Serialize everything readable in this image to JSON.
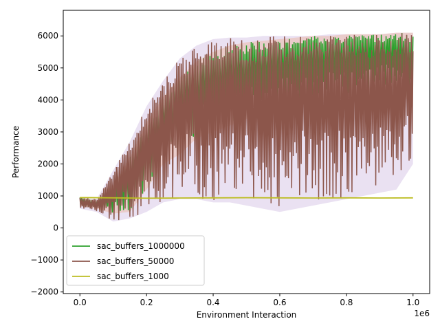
{
  "chart_data": {
    "type": "line",
    "xlabel": "Environment Interaction",
    "ylabel": "Performance",
    "x_offset_label": "1e6",
    "xlim": [
      -0.05,
      1.05
    ],
    "ylim": [
      -2050,
      6800
    ],
    "x_ticks": [
      0.0,
      0.2,
      0.4,
      0.6,
      0.8,
      1.0
    ],
    "x_tick_labels": [
      "0.0",
      "0.2",
      "0.4",
      "0.6",
      "0.8",
      "1.0"
    ],
    "y_ticks": [
      -2000,
      -1000,
      0,
      1000,
      2000,
      3000,
      4000,
      5000,
      6000
    ],
    "y_tick_labels": [
      "−2000",
      "−1000",
      "0",
      "1000",
      "2000",
      "3000",
      "4000",
      "5000",
      "6000"
    ],
    "grid": false,
    "legend_position": "lower-left",
    "series": [
      {
        "name": "sac_buffers_1000000",
        "color": "#2ca02c",
        "band_color": "#ff7f0e",
        "x": [
          0.0,
          0.05,
          0.1,
          0.15,
          0.2,
          0.25,
          0.3,
          0.35,
          0.4,
          0.45,
          0.5,
          0.55,
          0.6,
          0.65,
          0.7,
          0.75,
          0.8,
          0.85,
          0.9,
          0.95,
          1.0
        ],
        "y_low": [
          700,
          600,
          450,
          500,
          1200,
          2000,
          2300,
          2800,
          3000,
          3200,
          3400,
          3600,
          3700,
          3800,
          3900,
          4000,
          4100,
          4200,
          4300,
          4400,
          3800
        ],
        "y_high": [
          950,
          850,
          1300,
          2200,
          3300,
          4100,
          4700,
          5200,
          5500,
          5700,
          5800,
          5850,
          5900,
          5950,
          6000,
          6000,
          6050,
          6050,
          6050,
          6100,
          6100
        ]
      },
      {
        "name": "sac_buffers_50000",
        "color": "#8c564b",
        "band_color": "#9467bd",
        "x": [
          0.0,
          0.05,
          0.1,
          0.15,
          0.2,
          0.25,
          0.3,
          0.35,
          0.4,
          0.45,
          0.5,
          0.55,
          0.6,
          0.65,
          0.7,
          0.75,
          0.8,
          0.85,
          0.9,
          0.95,
          1.0
        ],
        "y_low": [
          600,
          500,
          200,
          300,
          500,
          800,
          900,
          900,
          800,
          800,
          700,
          600,
          500,
          600,
          700,
          800,
          900,
          1000,
          1100,
          1200,
          2000
        ],
        "y_high": [
          950,
          900,
          1800,
          2700,
          3800,
          4600,
          5300,
          5700,
          5900,
          5950,
          5950,
          6000,
          6000,
          6000,
          6000,
          6050,
          6050,
          6050,
          6050,
          6100,
          6100
        ]
      },
      {
        "name": "sac_buffers_1000",
        "color": "#bcbd22",
        "x": [
          0.0,
          0.1,
          0.2,
          0.3,
          0.4,
          0.5,
          0.6,
          0.7,
          0.8,
          0.9,
          1.0
        ],
        "y": [
          950,
          940,
          930,
          935,
          940,
          945,
          940,
          935,
          940,
          935,
          940
        ]
      }
    ]
  }
}
